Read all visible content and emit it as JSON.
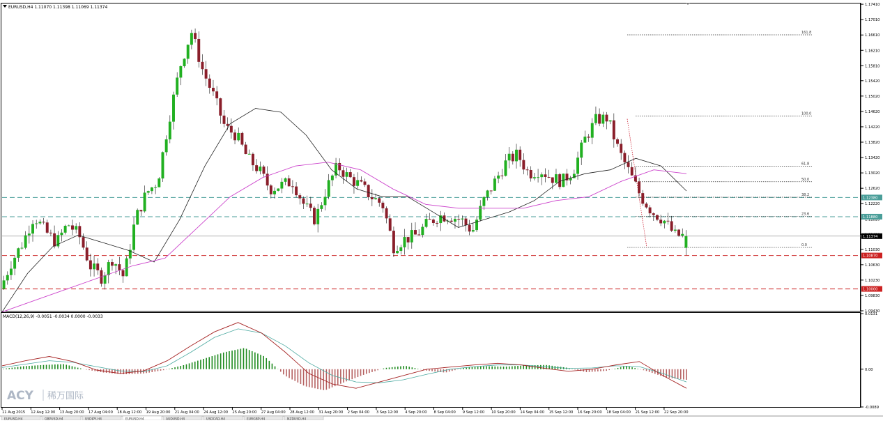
{
  "symbol_header": "EURUSD,H4  1.11070 1.11398 1.11069 1.11374",
  "macd_header": "MACD(12,26,9) -0.0051 -0.0034 0.0000 -0.0033",
  "watermark": {
    "brand": "ACY",
    "cn": "稀万国际"
  },
  "colors": {
    "bull": "#21b021",
    "bear": "#8a1e2a",
    "sma_fast": "#222222",
    "sma_slow": "#cc44cc",
    "hline_teal": "#4a9e99",
    "hline_red": "#cc2222",
    "macd_pos": "#1e8a1e",
    "macd_neg": "#b56060",
    "macd_line": "#a52222",
    "signal_line": "#4aa9a0"
  },
  "chart_data": [
    {
      "type": "candlestick",
      "name": "EURUSD,H4",
      "quote": {
        "open": 1.1107,
        "high": 1.11398,
        "low": 1.11069,
        "close": 1.11374
      },
      "ylim": [
        1.0943,
        1.1743
      ],
      "y_ticks": [
        "1.17410",
        "1.17010",
        "1.16610",
        "1.16210",
        "1.15810",
        "1.15420",
        "1.15020",
        "1.14620",
        "1.14220",
        "1.13820",
        "1.13420",
        "1.13020",
        "1.12620",
        "1.12220",
        "1.11820",
        "1.11420",
        "1.11030",
        "1.10630",
        "1.10230",
        "1.09830",
        "1.09430"
      ],
      "x_ticks": [
        "11 Aug 2015",
        "12 Aug 12:00",
        "13 Aug 20:00",
        "17 Aug 04:00",
        "18 Aug 12:00",
        "19 Aug 20:00",
        "21 Aug 04:00",
        "24 Aug 12:00",
        "25 Aug 20:00",
        "27 Aug 04:00",
        "28 Aug 12:00",
        "31 Aug 20:00",
        "2 Sep 04:00",
        "3 Sep 12:00",
        "4 Sep 20:00",
        "8 Sep 04:00",
        "9 Sep 12:00",
        "10 Sep 20:00",
        "14 Sep 04:00",
        "15 Sep 12:00",
        "16 Sep 20:00",
        "18 Sep 04:00",
        "21 Sep 12:00",
        "22 Sep 20:00"
      ],
      "price_badges": [
        {
          "label": "1.12380",
          "value": 1.1238,
          "style": "teal"
        },
        {
          "label": "1.11880",
          "value": 1.1188,
          "style": "teal"
        },
        {
          "label": "1.11374",
          "value": 1.11374,
          "style": "current"
        },
        {
          "label": "1.10870",
          "value": 1.1087,
          "style": "red"
        },
        {
          "label": "1.10000",
          "value": 1.1,
          "style": "red"
        }
      ],
      "fibonacci": {
        "low": 1.1108,
        "high": 1.145,
        "levels": [
          {
            "label": "161.8",
            "ratio": 1.618
          },
          {
            "label": "100.0",
            "ratio": 1.0
          },
          {
            "label": "61.8",
            "ratio": 0.618
          },
          {
            "label": "50.0",
            "ratio": 0.5
          },
          {
            "label": "38.2",
            "ratio": 0.382
          },
          {
            "label": "23.6",
            "ratio": 0.236
          },
          {
            "label": "0.0",
            "ratio": 0.0
          }
        ]
      },
      "price_path": [
        1.1,
        1.107,
        1.112,
        1.119,
        1.115,
        1.112,
        1.117,
        1.114,
        1.106,
        1.103,
        1.108,
        1.103,
        1.118,
        1.125,
        1.128,
        1.144,
        1.158,
        1.167,
        1.157,
        1.15,
        1.142,
        1.14,
        1.134,
        1.131,
        1.126,
        1.127,
        1.128,
        1.122,
        1.118,
        1.126,
        1.132,
        1.129,
        1.127,
        1.124,
        1.122,
        1.111,
        1.113,
        1.114,
        1.117,
        1.119,
        1.119,
        1.118,
        1.115,
        1.123,
        1.128,
        1.133,
        1.135,
        1.13,
        1.131,
        1.129,
        1.128,
        1.131,
        1.139,
        1.144,
        1.1445,
        1.136,
        1.13,
        1.124,
        1.12,
        1.118,
        1.114,
        1.11374
      ],
      "sma_fast_path": [
        1.094,
        1.104,
        1.111,
        1.114,
        1.112,
        1.11,
        1.107,
        1.118,
        1.132,
        1.143,
        1.147,
        1.146,
        1.14,
        1.131,
        1.126,
        1.124,
        1.124,
        1.12,
        1.116,
        1.118,
        1.12,
        1.123,
        1.128,
        1.13,
        1.131,
        1.134,
        1.132,
        1.1255
      ],
      "sma_slow_path": [
        1.094,
        1.097,
        1.1,
        1.103,
        1.106,
        1.108,
        1.116,
        1.124,
        1.129,
        1.132,
        1.133,
        1.131,
        1.126,
        1.122,
        1.121,
        1.121,
        1.121,
        1.123,
        1.124,
        1.128,
        1.131,
        1.13
      ]
    },
    {
      "type": "macd",
      "name": "MACD(12,26,9)",
      "values": {
        "macd": -0.0051,
        "signal": -0.0034,
        "hist_a": 0.0,
        "hist_b": -0.0033
      },
      "ylim": [
        -0.0089,
        0.0131
      ],
      "y_ticks": [
        "0.0131",
        "0.00",
        "-0.0089"
      ],
      "hist_path": [
        0.0001,
        0.0007,
        0.001,
        0.0012,
        0.0,
        -0.0008,
        -0.0012,
        -0.001,
        -0.0002,
        0.001,
        0.0025,
        0.004,
        0.005,
        0.003,
        -0.0015,
        -0.004,
        -0.005,
        -0.003,
        -0.0012,
        0.0003,
        0.0008,
        -0.0003,
        -0.0008,
        0.0004,
        0.0007,
        0.0006,
        0.0009,
        0.001,
        0.0004,
        -0.0007,
        -0.0004,
        0.0008,
        -0.0004,
        -0.002,
        -0.0025
      ],
      "macd_path": [
        0.0008,
        0.002,
        0.003,
        0.0018,
        -0.0002,
        -0.001,
        -0.0004,
        0.002,
        0.0055,
        0.0088,
        0.011,
        0.0085,
        0.004,
        -0.001,
        -0.0035,
        -0.0045,
        -0.003,
        -0.0015,
        0.0,
        0.0005,
        0.001,
        0.0014,
        0.001,
        0.0002,
        -0.0005,
        0.0,
        0.001,
        0.0018,
        -0.0015,
        -0.0045
      ],
      "signal_path": [
        0.0004,
        0.0012,
        0.002,
        0.0016,
        0.0006,
        -0.0004,
        -0.0006,
        0.0008,
        0.004,
        0.0075,
        0.0095,
        0.0085,
        0.0055,
        0.0015,
        -0.0015,
        -0.003,
        -0.0032,
        -0.0025,
        -0.0012,
        0.0,
        0.0006,
        0.001,
        0.001,
        0.0006,
        0.0002,
        0.0003,
        0.0008,
        0.0006,
        -0.001,
        -0.003
      ]
    }
  ],
  "bottom_tabs": [
    "EURUSD,H4",
    "GBPUSD,H4",
    "USDJPY,H4",
    "EURUSD,H4",
    "AUDUSD,H4",
    "USDCAD,H4",
    "EURGBP,H4",
    "NZDUSD,H4"
  ]
}
